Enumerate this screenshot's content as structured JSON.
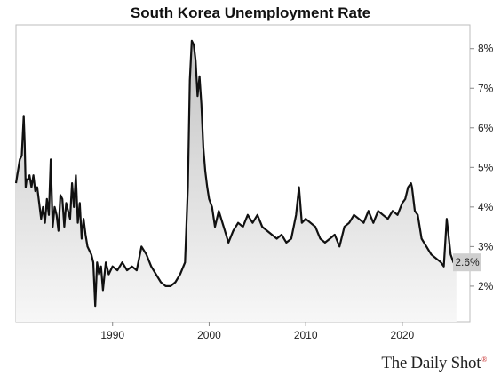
{
  "chart_data": {
    "type": "area",
    "title": "South Korea Unemployment Rate",
    "xlabel": "",
    "ylabel": "",
    "xlim": [
      1980.0,
      2027.0
    ],
    "ylim": [
      1.1,
      8.6
    ],
    "x_ticks": [
      1990,
      2000,
      2010,
      2020
    ],
    "x_tick_labels": [
      "1990",
      "2000",
      "2010",
      "2020"
    ],
    "y_ticks": [
      2,
      3,
      4,
      5,
      6,
      7,
      8
    ],
    "y_tick_labels": [
      "2%",
      "3%",
      "4%",
      "5%",
      "6%",
      "7%",
      "8%"
    ],
    "y_axis_position": "right",
    "grid": false,
    "last_value_label": "2.6%",
    "line_color": "#111111",
    "fill_top_color": "#c4c4c4",
    "fill_bottom_color": "#f7f7f7",
    "series": [
      {
        "x": [
          1980.0,
          1980.4,
          1980.6,
          1980.8,
          1980.9,
          1981.0,
          1981.1,
          1981.3,
          1981.4,
          1981.6,
          1981.8,
          1982.0,
          1982.2,
          1982.4,
          1982.6,
          1982.8,
          1983.0,
          1983.2,
          1983.4,
          1983.6,
          1983.8,
          1984.0,
          1984.2,
          1984.4,
          1984.6,
          1984.8,
          1985.0,
          1985.2,
          1985.4,
          1985.6,
          1985.8,
          1986.0,
          1986.2,
          1986.4,
          1986.6,
          1986.8,
          1987.0,
          1987.2,
          1987.4,
          1987.6,
          1987.8,
          1988.0,
          1988.2,
          1988.4,
          1988.6,
          1988.8,
          1989.0,
          1989.3,
          1989.6,
          1990.0,
          1990.5,
          1991.0,
          1991.5,
          1992.0,
          1992.5,
          1993.0,
          1993.5,
          1994.0,
          1994.5,
          1995.0,
          1995.5,
          1996.0,
          1996.5,
          1997.0,
          1997.5,
          1997.8,
          1998.0,
          1998.2,
          1998.4,
          1998.6,
          1998.8,
          1999.0,
          1999.2,
          1999.4,
          1999.6,
          1999.8,
          2000.0,
          2000.3,
          2000.6,
          2001.0,
          2001.5,
          2002.0,
          2002.5,
          2003.0,
          2003.5,
          2004.0,
          2004.5,
          2005.0,
          2005.5,
          2006.0,
          2006.5,
          2007.0,
          2007.5,
          2008.0,
          2008.5,
          2009.0,
          2009.3,
          2009.6,
          2010.0,
          2010.5,
          2011.0,
          2011.5,
          2012.0,
          2012.5,
          2013.0,
          2013.5,
          2014.0,
          2014.5,
          2015.0,
          2015.5,
          2016.0,
          2016.5,
          2017.0,
          2017.5,
          2018.0,
          2018.5,
          2019.0,
          2019.5,
          2020.0,
          2020.3,
          2020.6,
          2020.9,
          2021.0,
          2021.3,
          2021.6,
          2022.0,
          2022.5,
          2023.0,
          2023.5,
          2024.0,
          2024.3,
          2024.6,
          2025.0,
          2025.3,
          2025.6
        ],
        "values": [
          4.6,
          5.2,
          5.3,
          6.3,
          5.6,
          4.5,
          4.7,
          4.7,
          4.8,
          4.5,
          4.8,
          4.4,
          4.5,
          4.1,
          3.7,
          4.0,
          3.6,
          4.2,
          3.8,
          5.2,
          3.5,
          4.0,
          3.8,
          3.4,
          4.3,
          4.2,
          3.5,
          4.1,
          3.9,
          3.7,
          4.6,
          4.0,
          4.8,
          3.6,
          4.1,
          3.2,
          3.7,
          3.3,
          3.0,
          2.9,
          2.8,
          2.6,
          1.5,
          2.6,
          2.3,
          2.5,
          1.9,
          2.6,
          2.3,
          2.5,
          2.4,
          2.6,
          2.4,
          2.5,
          2.4,
          3.0,
          2.8,
          2.5,
          2.3,
          2.1,
          2.0,
          2.0,
          2.1,
          2.3,
          2.6,
          4.5,
          7.2,
          8.2,
          8.1,
          7.7,
          6.8,
          7.3,
          6.6,
          5.5,
          4.9,
          4.5,
          4.2,
          4.0,
          3.5,
          3.9,
          3.5,
          3.1,
          3.4,
          3.6,
          3.5,
          3.8,
          3.6,
          3.8,
          3.5,
          3.4,
          3.3,
          3.2,
          3.3,
          3.1,
          3.2,
          3.8,
          4.5,
          3.6,
          3.7,
          3.6,
          3.5,
          3.2,
          3.1,
          3.2,
          3.3,
          3.0,
          3.5,
          3.6,
          3.8,
          3.7,
          3.6,
          3.9,
          3.6,
          3.9,
          3.8,
          3.7,
          3.9,
          3.8,
          4.1,
          4.2,
          4.5,
          4.6,
          4.5,
          3.9,
          3.8,
          3.2,
          3.0,
          2.8,
          2.7,
          2.6,
          2.5,
          3.7,
          2.8,
          2.6,
          2.6
        ]
      }
    ]
  },
  "branding": {
    "source": "The Daily Shot",
    "mark": "®"
  }
}
